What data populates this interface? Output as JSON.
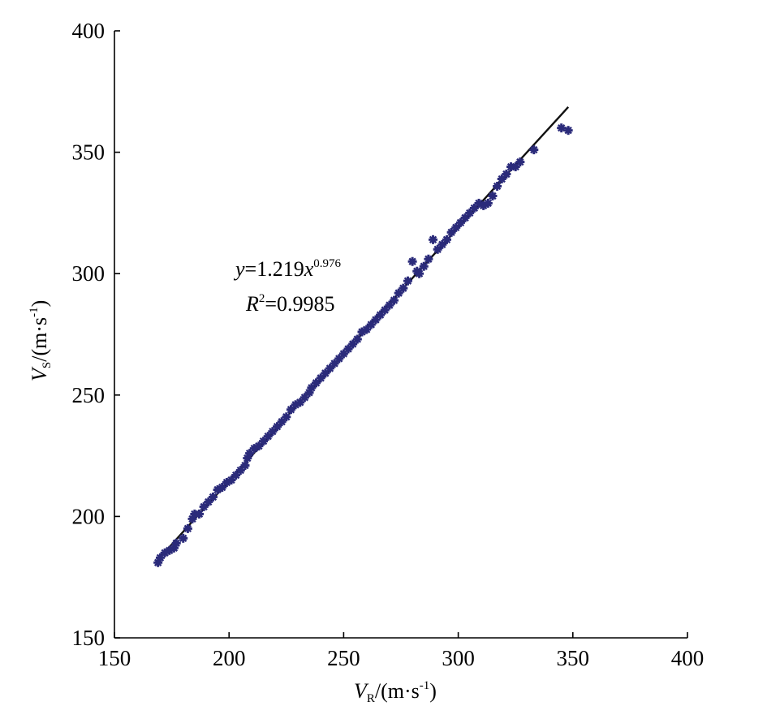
{
  "chart_data": {
    "type": "scatter",
    "xlabel": {
      "symbol": "V",
      "subscript": "R",
      "unit": "/(m·s",
      "unit_sup": "-1",
      "unit_close": ")"
    },
    "ylabel": {
      "symbol": "V",
      "subscript": "S",
      "unit": "/(m·s",
      "unit_sup": "-1",
      "unit_close": ")"
    },
    "xlim": [
      150,
      400
    ],
    "ylim": [
      150,
      400
    ],
    "x_ticks": [
      "150",
      "200",
      "250",
      "300",
      "350",
      "400"
    ],
    "y_ticks": [
      "150",
      "200",
      "250",
      "300",
      "350",
      "400"
    ],
    "fit": {
      "model": "power",
      "a": 1.219,
      "b": 0.976,
      "x_range": [
        170,
        348
      ],
      "equation": {
        "lhs": "y",
        "coef": "=1.219",
        "var": "x",
        "exp": "0.976"
      },
      "r2": {
        "label": "R",
        "sup": "2",
        "value": "=0.9985"
      }
    },
    "marker_color": "#2b2b7a",
    "line_color": "#111111",
    "points": [
      [
        169,
        181
      ],
      [
        170,
        183
      ],
      [
        172,
        185
      ],
      [
        174,
        186
      ],
      [
        176,
        187
      ],
      [
        177,
        189
      ],
      [
        180,
        191
      ],
      [
        182,
        195
      ],
      [
        184,
        199
      ],
      [
        185,
        201
      ],
      [
        187,
        201
      ],
      [
        189,
        204
      ],
      [
        191,
        206
      ],
      [
        193,
        208
      ],
      [
        195,
        211
      ],
      [
        197,
        212
      ],
      [
        199,
        214
      ],
      [
        201,
        215
      ],
      [
        203,
        217
      ],
      [
        205,
        219
      ],
      [
        207,
        221
      ],
      [
        208,
        224
      ],
      [
        209,
        226
      ],
      [
        211,
        228
      ],
      [
        213,
        229
      ],
      [
        215,
        231
      ],
      [
        217,
        233
      ],
      [
        219,
        235
      ],
      [
        221,
        237
      ],
      [
        223,
        239
      ],
      [
        225,
        241
      ],
      [
        227,
        244
      ],
      [
        229,
        246
      ],
      [
        231,
        247
      ],
      [
        233,
        249
      ],
      [
        235,
        251
      ],
      [
        236,
        253
      ],
      [
        238,
        255
      ],
      [
        240,
        257
      ],
      [
        242,
        259
      ],
      [
        244,
        261
      ],
      [
        246,
        263
      ],
      [
        248,
        265
      ],
      [
        250,
        267
      ],
      [
        252,
        269
      ],
      [
        254,
        271
      ],
      [
        256,
        273
      ],
      [
        258,
        276
      ],
      [
        260,
        277
      ],
      [
        262,
        279
      ],
      [
        264,
        281
      ],
      [
        266,
        283
      ],
      [
        268,
        285
      ],
      [
        270,
        287
      ],
      [
        272,
        289
      ],
      [
        274,
        292
      ],
      [
        276,
        294
      ],
      [
        278,
        297
      ],
      [
        280,
        305
      ],
      [
        282,
        301
      ],
      [
        283,
        300
      ],
      [
        285,
        303
      ],
      [
        287,
        306
      ],
      [
        289,
        314
      ],
      [
        291,
        310
      ],
      [
        293,
        312
      ],
      [
        295,
        314
      ],
      [
        297,
        317
      ],
      [
        299,
        319
      ],
      [
        301,
        321
      ],
      [
        303,
        323
      ],
      [
        305,
        325
      ],
      [
        307,
        327
      ],
      [
        309,
        329
      ],
      [
        311,
        328
      ],
      [
        313,
        329
      ],
      [
        315,
        332
      ],
      [
        317,
        336
      ],
      [
        319,
        339
      ],
      [
        321,
        341
      ],
      [
        323,
        344
      ],
      [
        325,
        344
      ],
      [
        327,
        346
      ],
      [
        333,
        351
      ],
      [
        345,
        360
      ],
      [
        348,
        359
      ]
    ]
  }
}
